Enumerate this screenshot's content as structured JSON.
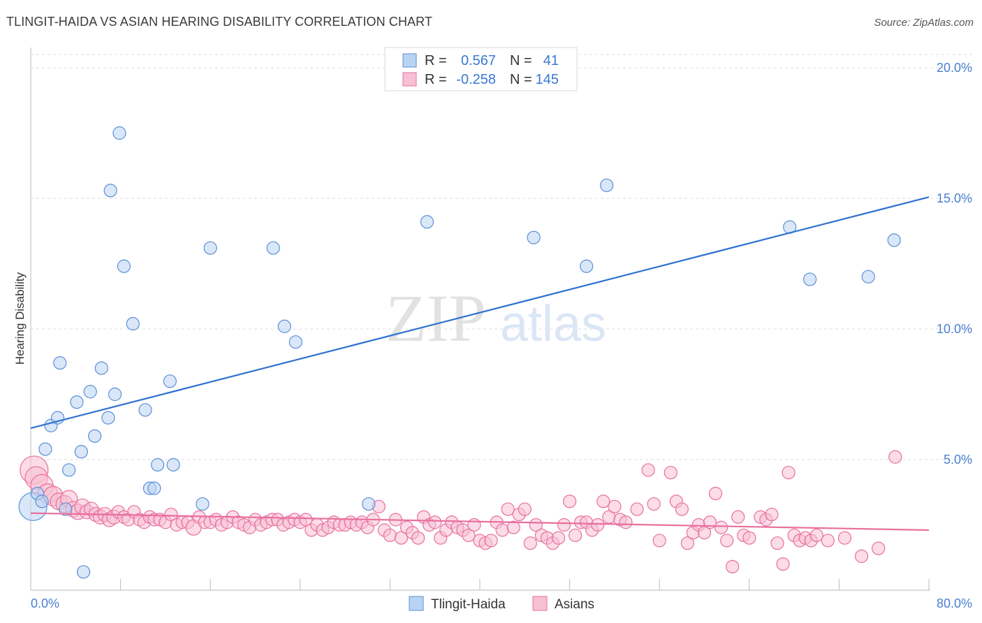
{
  "header": {
    "title": "TLINGIT-HAIDA VS ASIAN HEARING DISABILITY CORRELATION CHART",
    "source": "Source: ZipAtlas.com"
  },
  "watermark": {
    "part1": "ZIP",
    "part2": "atlas"
  },
  "colors": {
    "blue": "#5b8fd6",
    "blue_fill": "#b9d3f3",
    "blue_line": "#2f73d0",
    "pink": "#e86f9d",
    "pink_fill": "#f7c0d4",
    "pink_line": "#e86f9d",
    "axis_label": "#4a7fd0",
    "grid": "#dddddd"
  },
  "legend": {
    "rows": [
      {
        "r_label": "R =",
        "r_value": "0.567",
        "n_label": "N =",
        "n_value": "41"
      },
      {
        "r_label": "R =",
        "r_value": "-0.258",
        "n_label": "N =",
        "n_value": "145"
      }
    ]
  },
  "chart_data": {
    "type": "scatter",
    "title": "TLINGIT-HAIDA VS ASIAN HEARING DISABILITY CORRELATION CHART",
    "xlabel": "",
    "ylabel": "Hearing Disability",
    "xlim": [
      0,
      80
    ],
    "ylim": [
      0,
      20.5
    ],
    "x_tick_labels": [
      "0.0%",
      "80.0%"
    ],
    "y_ticks": [
      5,
      10,
      15,
      20
    ],
    "y_tick_labels": [
      "5.0%",
      "10.0%",
      "15.0%",
      "20.0%"
    ],
    "grid": true,
    "series": [
      {
        "name": "Tlingit-Haida",
        "r": 0.567,
        "n": 41,
        "trend": {
          "x0": 0,
          "y0": 6.2,
          "x1": 80,
          "y1": 15.05
        },
        "points": [
          [
            0.2,
            3.2,
            20
          ],
          [
            0.6,
            3.7,
            9
          ],
          [
            1.0,
            3.4,
            9
          ],
          [
            1.3,
            5.4,
            9
          ],
          [
            1.8,
            6.3,
            9
          ],
          [
            2.4,
            6.6,
            9
          ],
          [
            2.6,
            8.7,
            9
          ],
          [
            3.1,
            3.1,
            9
          ],
          [
            3.4,
            4.6,
            9
          ],
          [
            4.1,
            7.2,
            9
          ],
          [
            4.5,
            5.3,
            9
          ],
          [
            4.7,
            0.7,
            9
          ],
          [
            5.3,
            7.6,
            9
          ],
          [
            5.7,
            5.9,
            9
          ],
          [
            6.3,
            8.5,
            9
          ],
          [
            6.9,
            6.6,
            9
          ],
          [
            7.1,
            15.3,
            9
          ],
          [
            7.5,
            7.5,
            9
          ],
          [
            7.9,
            17.5,
            9
          ],
          [
            8.3,
            12.4,
            9
          ],
          [
            9.1,
            10.2,
            9
          ],
          [
            10.2,
            6.9,
            9
          ],
          [
            10.6,
            3.9,
            9
          ],
          [
            11.0,
            3.9,
            9
          ],
          [
            11.3,
            4.8,
            9
          ],
          [
            12.4,
            8.0,
            9
          ],
          [
            12.7,
            4.8,
            9
          ],
          [
            15.3,
            3.3,
            9
          ],
          [
            16.0,
            13.1,
            9
          ],
          [
            21.6,
            13.1,
            9
          ],
          [
            22.6,
            10.1,
            9
          ],
          [
            23.6,
            9.5,
            9
          ],
          [
            30.1,
            3.3,
            9
          ],
          [
            35.3,
            14.1,
            9
          ],
          [
            44.8,
            13.5,
            9
          ],
          [
            49.5,
            12.4,
            9
          ],
          [
            51.3,
            15.5,
            9
          ],
          [
            67.6,
            13.9,
            9
          ],
          [
            69.4,
            11.9,
            9
          ],
          [
            74.6,
            12.0,
            9
          ],
          [
            76.9,
            13.4,
            9
          ]
        ]
      },
      {
        "name": "Asians",
        "r": -0.258,
        "n": 145,
        "trend": {
          "x0": 0,
          "y0": 2.95,
          "x1": 80,
          "y1": 2.3
        },
        "points": [
          [
            0.3,
            4.6,
            20
          ],
          [
            0.5,
            4.3,
            16
          ],
          [
            1.0,
            4.0,
            16
          ],
          [
            1.5,
            3.7,
            14
          ],
          [
            2.0,
            3.6,
            14
          ],
          [
            2.5,
            3.4,
            12
          ],
          [
            3.0,
            3.3,
            12
          ],
          [
            3.4,
            3.5,
            12
          ],
          [
            3.8,
            3.1,
            11
          ],
          [
            4.2,
            3.0,
            11
          ],
          [
            4.6,
            3.2,
            11
          ],
          [
            5.0,
            3.0,
            10
          ],
          [
            5.4,
            3.1,
            10
          ],
          [
            5.8,
            2.9,
            10
          ],
          [
            6.2,
            2.8,
            10
          ],
          [
            6.6,
            2.9,
            10
          ],
          [
            7.0,
            2.7,
            10
          ],
          [
            7.4,
            2.8,
            10
          ],
          [
            7.8,
            3.0,
            9
          ],
          [
            8.3,
            2.8,
            9
          ],
          [
            8.7,
            2.7,
            9
          ],
          [
            9.2,
            3.0,
            9
          ],
          [
            9.7,
            2.7,
            9
          ],
          [
            10.1,
            2.6,
            9
          ],
          [
            10.6,
            2.8,
            9
          ],
          [
            11.0,
            2.7,
            9
          ],
          [
            11.5,
            2.7,
            9
          ],
          [
            12.0,
            2.6,
            9
          ],
          [
            12.5,
            2.9,
            9
          ],
          [
            13.0,
            2.5,
            9
          ],
          [
            13.5,
            2.6,
            9
          ],
          [
            14.0,
            2.6,
            9
          ],
          [
            14.5,
            2.4,
            11
          ],
          [
            15.0,
            2.8,
            9
          ],
          [
            15.5,
            2.6,
            9
          ],
          [
            16.0,
            2.6,
            9
          ],
          [
            16.5,
            2.7,
            9
          ],
          [
            17.0,
            2.5,
            9
          ],
          [
            17.5,
            2.6,
            9
          ],
          [
            18.0,
            2.8,
            9
          ],
          [
            18.5,
            2.6,
            9
          ],
          [
            19.0,
            2.5,
            9
          ],
          [
            19.5,
            2.4,
            9
          ],
          [
            20.0,
            2.7,
            9
          ],
          [
            20.5,
            2.5,
            9
          ],
          [
            21.0,
            2.6,
            9
          ],
          [
            21.5,
            2.7,
            9
          ],
          [
            22.0,
            2.7,
            9
          ],
          [
            22.5,
            2.5,
            9
          ],
          [
            23.0,
            2.6,
            9
          ],
          [
            23.5,
            2.7,
            9
          ],
          [
            24.0,
            2.6,
            9
          ],
          [
            24.5,
            2.7,
            9
          ],
          [
            25.0,
            2.3,
            9
          ],
          [
            25.5,
            2.5,
            9
          ],
          [
            26.0,
            2.3,
            9
          ],
          [
            26.5,
            2.4,
            9
          ],
          [
            27.0,
            2.6,
            9
          ],
          [
            27.5,
            2.5,
            9
          ],
          [
            28.0,
            2.5,
            9
          ],
          [
            28.5,
            2.6,
            9
          ],
          [
            29.0,
            2.5,
            9
          ],
          [
            29.5,
            2.6,
            9
          ],
          [
            30.0,
            2.4,
            9
          ],
          [
            30.5,
            2.7,
            9
          ],
          [
            31.0,
            3.2,
            9
          ],
          [
            31.5,
            2.3,
            9
          ],
          [
            32.0,
            2.1,
            9
          ],
          [
            32.5,
            2.7,
            9
          ],
          [
            33.0,
            2.0,
            9
          ],
          [
            33.5,
            2.4,
            9
          ],
          [
            34.0,
            2.2,
            9
          ],
          [
            34.5,
            2.0,
            9
          ],
          [
            35.0,
            2.8,
            9
          ],
          [
            35.5,
            2.5,
            9
          ],
          [
            36.0,
            2.6,
            9
          ],
          [
            36.5,
            2.0,
            9
          ],
          [
            37.0,
            2.3,
            9
          ],
          [
            37.5,
            2.6,
            9
          ],
          [
            38.0,
            2.4,
            9
          ],
          [
            38.5,
            2.3,
            9
          ],
          [
            39.0,
            2.1,
            9
          ],
          [
            39.5,
            2.5,
            9
          ],
          [
            40.0,
            1.9,
            9
          ],
          [
            40.5,
            1.8,
            9
          ],
          [
            41.0,
            1.9,
            9
          ],
          [
            41.5,
            2.6,
            9
          ],
          [
            42.0,
            2.3,
            9
          ],
          [
            42.5,
            3.1,
            9
          ],
          [
            43.0,
            2.4,
            9
          ],
          [
            43.5,
            2.9,
            9
          ],
          [
            44.0,
            3.1,
            9
          ],
          [
            44.5,
            1.8,
            9
          ],
          [
            45.0,
            2.5,
            9
          ],
          [
            45.5,
            2.1,
            9
          ],
          [
            46.0,
            2.0,
            9
          ],
          [
            46.5,
            1.8,
            9
          ],
          [
            47.0,
            2.0,
            9
          ],
          [
            47.5,
            2.5,
            9
          ],
          [
            48.0,
            3.4,
            9
          ],
          [
            48.5,
            2.1,
            9
          ],
          [
            49.0,
            2.6,
            9
          ],
          [
            49.5,
            2.6,
            9
          ],
          [
            50.0,
            2.3,
            9
          ],
          [
            50.5,
            2.5,
            9
          ],
          [
            51.0,
            3.4,
            9
          ],
          [
            51.5,
            2.8,
            9
          ],
          [
            52.0,
            3.2,
            9
          ],
          [
            52.5,
            2.7,
            9
          ],
          [
            53.0,
            2.6,
            9
          ],
          [
            54.0,
            3.1,
            9
          ],
          [
            55.0,
            4.6,
            9
          ],
          [
            55.5,
            3.3,
            9
          ],
          [
            56.0,
            1.9,
            9
          ],
          [
            57.0,
            4.5,
            9
          ],
          [
            57.5,
            3.4,
            9
          ],
          [
            58.0,
            3.1,
            9
          ],
          [
            58.5,
            1.8,
            9
          ],
          [
            59.0,
            2.2,
            9
          ],
          [
            59.5,
            2.5,
            9
          ],
          [
            60.0,
            2.2,
            9
          ],
          [
            60.5,
            2.6,
            9
          ],
          [
            61.0,
            3.7,
            9
          ],
          [
            61.5,
            2.4,
            9
          ],
          [
            62.0,
            1.9,
            9
          ],
          [
            62.5,
            0.9,
            9
          ],
          [
            63.0,
            2.8,
            9
          ],
          [
            63.5,
            2.1,
            9
          ],
          [
            64.0,
            2.0,
            9
          ],
          [
            65.0,
            2.8,
            9
          ],
          [
            65.5,
            2.7,
            9
          ],
          [
            66.0,
            2.9,
            9
          ],
          [
            66.5,
            1.8,
            9
          ],
          [
            67.0,
            1.0,
            9
          ],
          [
            67.5,
            4.5,
            9
          ],
          [
            68.0,
            2.1,
            9
          ],
          [
            68.5,
            1.9,
            9
          ],
          [
            69.0,
            2.0,
            9
          ],
          [
            69.5,
            1.9,
            9
          ],
          [
            70.0,
            2.1,
            9
          ],
          [
            71.0,
            1.9,
            9
          ],
          [
            72.5,
            2.0,
            9
          ],
          [
            74.0,
            1.3,
            9
          ],
          [
            75.5,
            1.6,
            9
          ],
          [
            77.0,
            5.1,
            9
          ]
        ]
      }
    ]
  },
  "bottom_legend": {
    "items": [
      "Tlingit-Haida",
      "Asians"
    ]
  }
}
